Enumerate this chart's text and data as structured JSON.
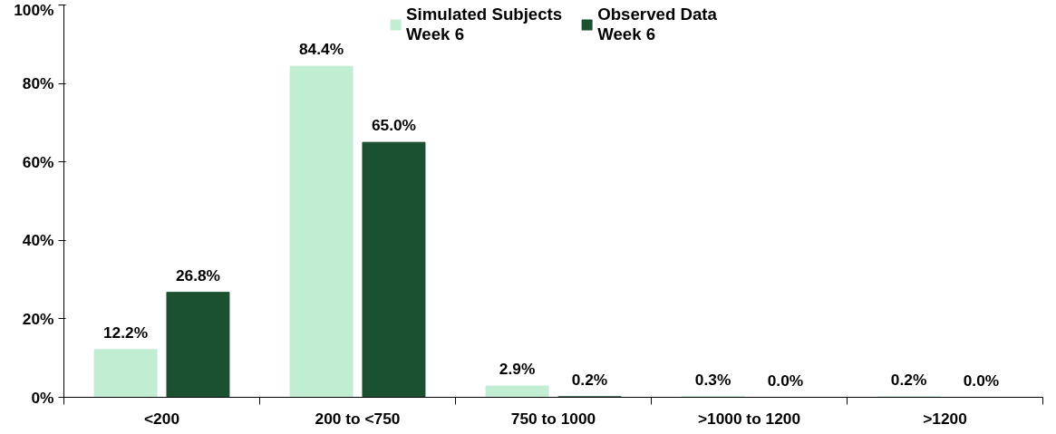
{
  "chart_data": {
    "type": "bar",
    "categories": [
      "<200",
      "200 to <750",
      "750 to 1000",
      ">1000 to 1200",
      ">1200"
    ],
    "series": [
      {
        "name": "Simulated Subjects\nWeek 6",
        "color": "#c1eed3",
        "values": [
          12.2,
          84.4,
          2.9,
          0.3,
          0.2
        ],
        "value_labels": [
          "12.2%",
          "84.4%",
          "2.9%",
          "0.3%",
          "0.2%"
        ]
      },
      {
        "name": "Observed Data\nWeek 6",
        "color": "#1b5131",
        "values": [
          26.8,
          65.0,
          0.2,
          0.0,
          0.0
        ],
        "value_labels": [
          "26.8%",
          "65.0%",
          "0.2%",
          "0.0%",
          "0.0%"
        ]
      }
    ],
    "ylim": [
      0,
      100
    ],
    "yticks": [
      {
        "value": 0,
        "label": "0%"
      },
      {
        "value": 20,
        "label": "20%"
      },
      {
        "value": 40,
        "label": "40%"
      },
      {
        "value": 60,
        "label": "60%"
      },
      {
        "value": 80,
        "label": "80%"
      },
      {
        "value": 100,
        "label": "100%"
      }
    ],
    "grid": false,
    "legend": "top"
  }
}
